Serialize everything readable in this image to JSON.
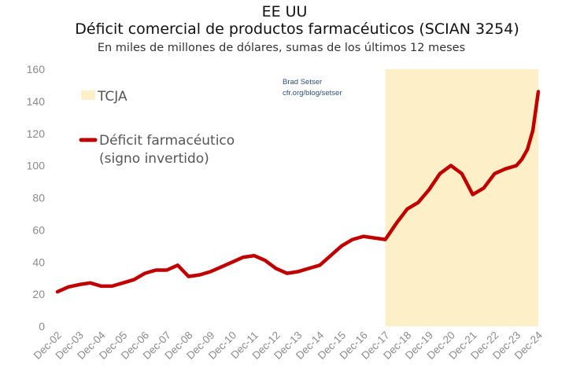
{
  "title": "EE UU",
  "subtitle": "Déficit comercial de productos farmacéuticos (SCIAN 3254)",
  "subtitle2": "En miles de millones de dólares, sumas de los últimos 12 meses",
  "credit": {
    "line1": "Brad Setser",
    "line2": "cfr.org/blog/setser"
  },
  "colors": {
    "series": "#c00000",
    "shade": "#fdf0c8",
    "axis_text": "#8a8a8a"
  },
  "chart_data": {
    "type": "line",
    "title": "Déficit comercial de productos farmacéuticos (SCIAN 3254)",
    "xlabel": "",
    "ylabel": "",
    "ylim": [
      0,
      160
    ],
    "yticks": [
      0,
      20,
      40,
      60,
      80,
      100,
      120,
      140,
      160
    ],
    "xticks": [
      "Dec-02",
      "Dec-03",
      "Dec-04",
      "Dec-05",
      "Dec-06",
      "Dec-07",
      "Dec-08",
      "Dec-09",
      "Dec-10",
      "Dec-11",
      "Dec-12",
      "Dec-13",
      "Dec-14",
      "Dec-15",
      "Dec-16",
      "Dec-17",
      "Dec-18",
      "Dec-19",
      "Dec-20",
      "Dec-21",
      "Dec-22",
      "Dec-23",
      "Dec-24"
    ],
    "grid": false,
    "legend": {
      "position": "top-left",
      "entries": [
        "TCJA",
        "Déficit farmacéutico",
        "(signo invertido)"
      ]
    },
    "shaded_region": {
      "label": "TCJA",
      "from": "2017-12",
      "to": "2024-12"
    },
    "series": [
      {
        "name": "Déficit farmacéutico (signo invertido)",
        "x": [
          "2002-12",
          "2003-06",
          "2003-12",
          "2004-06",
          "2004-12",
          "2005-06",
          "2005-12",
          "2006-06",
          "2006-12",
          "2007-06",
          "2007-12",
          "2008-06",
          "2008-12",
          "2009-06",
          "2009-12",
          "2010-06",
          "2010-12",
          "2011-06",
          "2011-12",
          "2012-06",
          "2012-12",
          "2013-06",
          "2013-12",
          "2014-06",
          "2014-12",
          "2015-06",
          "2015-12",
          "2016-06",
          "2016-12",
          "2017-06",
          "2017-12",
          "2018-06",
          "2018-12",
          "2019-06",
          "2019-12",
          "2020-06",
          "2020-12",
          "2021-06",
          "2021-12",
          "2022-06",
          "2022-12",
          "2023-06",
          "2023-12",
          "2024-03",
          "2024-06",
          "2024-09",
          "2024-12"
        ],
        "values": [
          21.5,
          24.5,
          26,
          27,
          25,
          25,
          27,
          29,
          33,
          35,
          35,
          38,
          31,
          32,
          34,
          37,
          40,
          43,
          44,
          41,
          36,
          33,
          34,
          36,
          38,
          44,
          50,
          54,
          56,
          55,
          54,
          64,
          73,
          77,
          85,
          95,
          100,
          95,
          82,
          86,
          95,
          98,
          100,
          104,
          110,
          122,
          146
        ]
      }
    ]
  }
}
